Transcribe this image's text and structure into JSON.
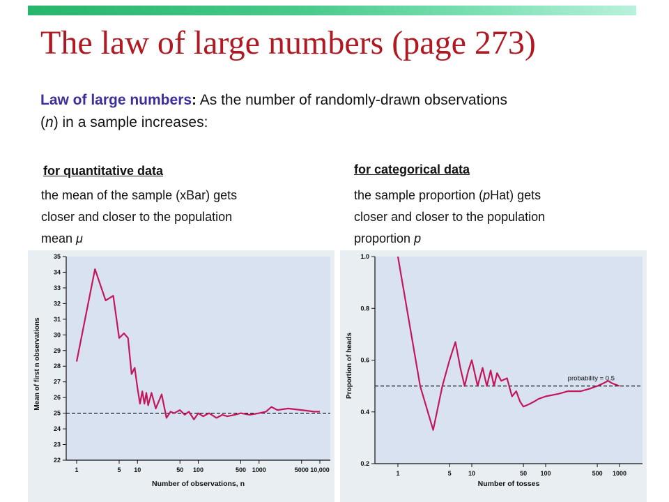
{
  "slide": {
    "title": "The law of large numbers (page 273)",
    "intro": {
      "term": "Law of large numbers",
      "colon": ":",
      "line1_rest": " As the number of randomly-drawn observations",
      "paren_open": "(",
      "n": "n",
      "line2_rest": ") in a sample increases:"
    },
    "left": {
      "heading": "for quantitative data",
      "desc_line1": "the mean of the sample (xBar) gets",
      "desc_line2": "closer and closer to the population",
      "desc_line3_prefix": "mean ",
      "mu_symbol": "μ"
    },
    "right": {
      "heading": "for categorical data",
      "desc_line1": "the sample proportion (",
      "desc_p": "p",
      "desc_line1_rest": "Hat) gets",
      "desc_line2": "closer and closer to the population",
      "desc_line3_prefix": "proportion ",
      "desc_p2": "p"
    }
  },
  "chart_data": [
    {
      "type": "line",
      "title": "",
      "xlabel": "Number of observations, n",
      "ylabel": "Mean of first n observations",
      "x_scale": "log",
      "x_ticks": [
        1,
        5,
        10,
        50,
        100,
        500,
        1000,
        5000,
        10000
      ],
      "x_tick_labels": [
        "1",
        "5",
        "10",
        "50",
        "100",
        "500",
        "1000",
        "5000",
        "10,000"
      ],
      "ylim": [
        22,
        35
      ],
      "y_ticks": [
        22,
        23,
        24,
        25,
        26,
        27,
        28,
        29,
        30,
        31,
        32,
        33,
        34,
        35
      ],
      "reference_line": {
        "y": 25,
        "style": "dashed"
      },
      "series": [
        {
          "color": "#c2185b",
          "points": [
            [
              1,
              28.3
            ],
            [
              2,
              34.2
            ],
            [
              3,
              32.2
            ],
            [
              4,
              32.5
            ],
            [
              5,
              29.8
            ],
            [
              6,
              30.1
            ],
            [
              7,
              29.8
            ],
            [
              8,
              27.5
            ],
            [
              9,
              27.9
            ],
            [
              10,
              26.6
            ],
            [
              11,
              25.6
            ],
            [
              12,
              26.4
            ],
            [
              13,
              25.6
            ],
            [
              14,
              26.3
            ],
            [
              15,
              25.5
            ],
            [
              17,
              26.3
            ],
            [
              20,
              25.3
            ],
            [
              25,
              26.2
            ],
            [
              30,
              24.7
            ],
            [
              35,
              25.1
            ],
            [
              40,
              25.0
            ],
            [
              50,
              25.2
            ],
            [
              60,
              24.9
            ],
            [
              70,
              25.1
            ],
            [
              85,
              24.6
            ],
            [
              100,
              25.0
            ],
            [
              120,
              24.8
            ],
            [
              150,
              25.0
            ],
            [
              200,
              24.7
            ],
            [
              250,
              24.9
            ],
            [
              300,
              24.8
            ],
            [
              400,
              24.9
            ],
            [
              500,
              25.0
            ],
            [
              700,
              24.9
            ],
            [
              1000,
              25.0
            ],
            [
              1300,
              25.1
            ],
            [
              1600,
              25.4
            ],
            [
              2000,
              25.2
            ],
            [
              3000,
              25.3
            ],
            [
              5000,
              25.2
            ],
            [
              8000,
              25.1
            ],
            [
              10000,
              25.1
            ]
          ]
        }
      ]
    },
    {
      "type": "line",
      "title": "",
      "xlabel": "Number of tosses",
      "ylabel": "Proportion of heads",
      "x_scale": "log",
      "x_ticks": [
        1,
        5,
        10,
        50,
        100,
        500,
        1000
      ],
      "x_tick_labels": [
        "1",
        "5",
        "10",
        "50",
        "100",
        "500",
        "1000"
      ],
      "ylim": [
        0.2,
        1.0
      ],
      "y_ticks": [
        0.2,
        0.4,
        0.6,
        0.8,
        1.0
      ],
      "y_tick_labels": [
        "0.2",
        "0.4",
        "0.6",
        "0.8",
        "1.0"
      ],
      "reference_line": {
        "y": 0.5,
        "style": "dashed",
        "label": "probability = 0.5"
      },
      "series": [
        {
          "color": "#c2185b",
          "points": [
            [
              1,
              1.0
            ],
            [
              2,
              0.5
            ],
            [
              3,
              0.33
            ],
            [
              4,
              0.5
            ],
            [
              5,
              0.6
            ],
            [
              6,
              0.67
            ],
            [
              7,
              0.57
            ],
            [
              8,
              0.5
            ],
            [
              9,
              0.56
            ],
            [
              10,
              0.6
            ],
            [
              12,
              0.5
            ],
            [
              14,
              0.57
            ],
            [
              16,
              0.5
            ],
            [
              18,
              0.56
            ],
            [
              20,
              0.5
            ],
            [
              22,
              0.55
            ],
            [
              25,
              0.52
            ],
            [
              30,
              0.53
            ],
            [
              35,
              0.46
            ],
            [
              40,
              0.48
            ],
            [
              45,
              0.44
            ],
            [
              50,
              0.42
            ],
            [
              60,
              0.43
            ],
            [
              70,
              0.44
            ],
            [
              80,
              0.45
            ],
            [
              100,
              0.46
            ],
            [
              150,
              0.47
            ],
            [
              200,
              0.48
            ],
            [
              300,
              0.48
            ],
            [
              400,
              0.49
            ],
            [
              500,
              0.5
            ],
            [
              600,
              0.51
            ],
            [
              700,
              0.52
            ],
            [
              800,
              0.51
            ],
            [
              1000,
              0.5
            ]
          ]
        }
      ]
    }
  ]
}
